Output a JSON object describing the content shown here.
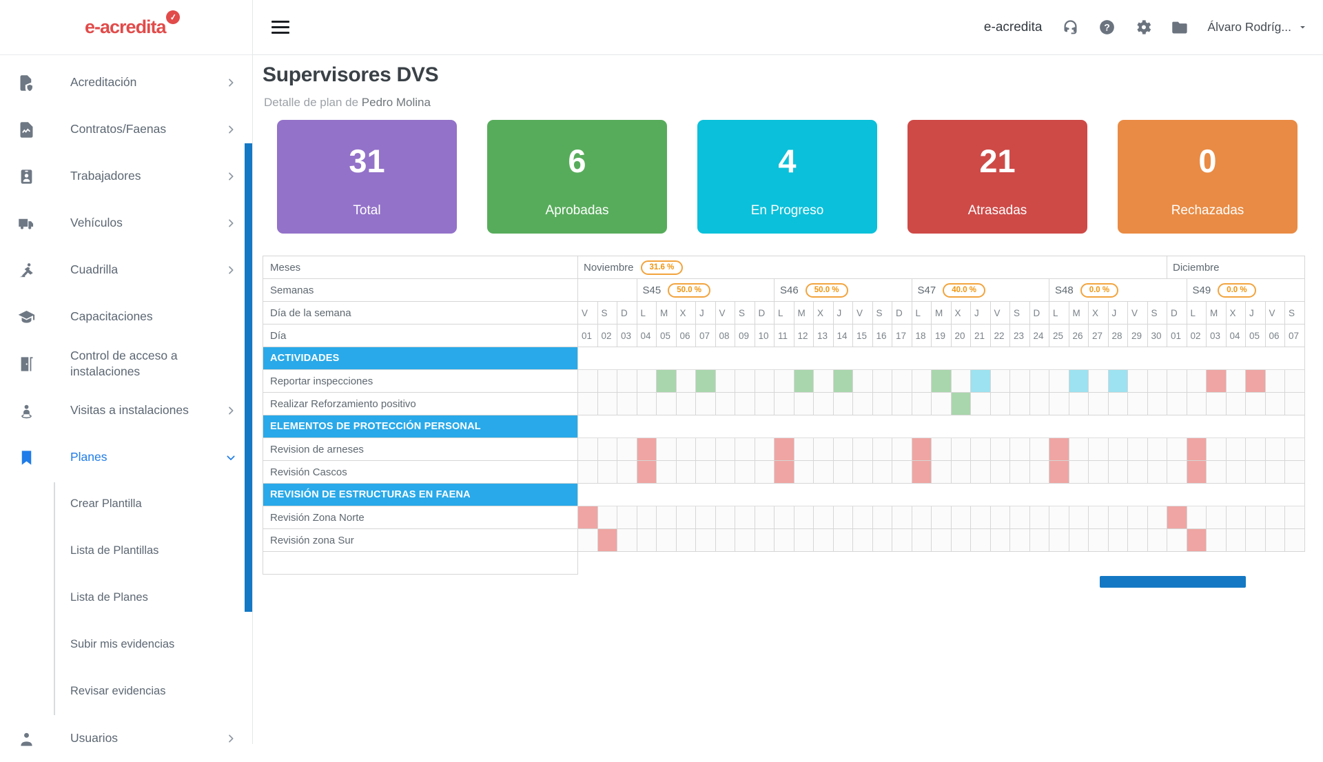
{
  "page": {
    "title": "Supervisores DVS",
    "subtitle_prefix": "Detalle de plan de ",
    "subtitle_name": "Pedro Molina"
  },
  "logo": {
    "text": "e-acredita",
    "badge": "✓",
    "color": "#E14B4A"
  },
  "topbar": {
    "brand": "e-acredita",
    "icons": [
      "headset",
      "help",
      "settings",
      "folder"
    ],
    "user_name": "Álvaro Rodríg...",
    "user_caret": "caret-down"
  },
  "sidebar": {
    "items": [
      {
        "id": "acreditacion",
        "label": "Acreditación",
        "icon": "file-shield",
        "chevron": "right"
      },
      {
        "id": "contratos-faenas",
        "label": "Contratos/Faenas",
        "icon": "file-contract",
        "chevron": "right"
      },
      {
        "id": "trabajadores",
        "label": "Trabajadores",
        "icon": "id-badge",
        "chevron": "right"
      },
      {
        "id": "vehiculos",
        "label": "Vehículos",
        "icon": "truck",
        "chevron": "right"
      },
      {
        "id": "cuadrilla",
        "label": "Cuadrilla",
        "icon": "worker",
        "chevron": "right"
      },
      {
        "id": "capacitaciones",
        "label": "Capacitaciones",
        "icon": "graduation-cap",
        "chevron": ""
      },
      {
        "id": "control-de-acceso",
        "label": "Control de acceso a instalaciones",
        "icon": "door",
        "chevron": ""
      },
      {
        "id": "visitas",
        "label": "Visitas a instalaciones",
        "icon": "person-pin",
        "chevron": "right"
      },
      {
        "id": "planes",
        "label": "Planes",
        "icon": "bookmark",
        "chevron": "down",
        "active": true
      },
      {
        "id": "crear-plantilla",
        "label": "Crear Plantilla",
        "sub": true
      },
      {
        "id": "lista-de-plantillas",
        "label": "Lista de Plantillas",
        "sub": true
      },
      {
        "id": "lista-de-planes",
        "label": "Lista de Planes",
        "sub": true
      },
      {
        "id": "subir-mis-evidencias",
        "label": "Subir mis evidencias",
        "sub": true
      },
      {
        "id": "revisar-evidencias",
        "label": "Revisar evidencias",
        "sub": true
      },
      {
        "id": "usuarios",
        "label": "Usuarios",
        "icon": "person",
        "chevron": "right"
      }
    ]
  },
  "cards": [
    {
      "id": "total",
      "value": "31",
      "label": "Total",
      "color": "#9372C9"
    },
    {
      "id": "aprobadas",
      "value": "6",
      "label": "Aprobadas",
      "color": "#57AC5B"
    },
    {
      "id": "en-progreso",
      "value": "4",
      "label": "En Progreso",
      "color": "#0BC0DA"
    },
    {
      "id": "atrasadas",
      "value": "21",
      "label": "Atrasadas",
      "color": "#CE4A47"
    },
    {
      "id": "rechazadas",
      "value": "0",
      "label": "Rechazadas",
      "color": "#E98B44"
    }
  ],
  "gantt": {
    "row_headers": [
      "Meses",
      "Semanas",
      "Día de la semana",
      "Día"
    ],
    "months": [
      {
        "name": "Noviembre",
        "badge": "31.6 %",
        "span": 30
      },
      {
        "name": "Diciembre",
        "badge": "",
        "span": 7
      }
    ],
    "weeks": [
      {
        "name": "",
        "badge": "",
        "span": 3
      },
      {
        "name": "S45",
        "badge": "50.0 %",
        "span": 7
      },
      {
        "name": "S46",
        "badge": "50.0 %",
        "span": 7
      },
      {
        "name": "S47",
        "badge": "40.0 %",
        "span": 7
      },
      {
        "name": "S48",
        "badge": "0.0 %",
        "span": 7
      },
      {
        "name": "S49",
        "badge": "0.0 %",
        "span": 6
      }
    ],
    "dows": [
      "V",
      "S",
      "D",
      "L",
      "M",
      "X",
      "J",
      "V",
      "S",
      "D",
      "L",
      "M",
      "X",
      "J",
      "V",
      "S",
      "D",
      "L",
      "M",
      "X",
      "J",
      "V",
      "S",
      "D",
      "L",
      "M",
      "X",
      "J",
      "V",
      "S",
      "D",
      "L",
      "M",
      "X",
      "J",
      "V",
      "S"
    ],
    "days": [
      "01",
      "02",
      "03",
      "04",
      "05",
      "06",
      "07",
      "08",
      "09",
      "10",
      "11",
      "12",
      "13",
      "14",
      "15",
      "16",
      "17",
      "18",
      "19",
      "20",
      "21",
      "22",
      "23",
      "24",
      "25",
      "26",
      "27",
      "28",
      "29",
      "30",
      "01",
      "02",
      "03",
      "04",
      "05",
      "06",
      "07"
    ],
    "rows": [
      {
        "type": "section",
        "label": "ACTIVIDADES"
      },
      {
        "type": "task",
        "label": "Reportar inspecciones",
        "green": [
          5,
          7,
          12,
          14,
          19
        ],
        "cyan": [
          21,
          26,
          28
        ],
        "red": [
          33,
          35
        ]
      },
      {
        "type": "task",
        "label": "Realizar Reforzamiento positivo",
        "green": [
          20
        ],
        "cyan": [],
        "red": []
      },
      {
        "type": "section",
        "label": "ELEMENTOS DE PROTECCIÓN PERSONAL"
      },
      {
        "type": "task",
        "label": "Revision de arneses",
        "green": [],
        "cyan": [],
        "red": [
          4,
          11,
          18,
          25,
          32
        ]
      },
      {
        "type": "task",
        "label": "Revisión Cascos",
        "green": [],
        "cyan": [],
        "red": [
          4,
          11,
          18,
          25,
          32
        ]
      },
      {
        "type": "section",
        "label": "REVISIÓN DE ESTRUCTURAS EN FAENA"
      },
      {
        "type": "task",
        "label": "Revisión Zona Norte",
        "green": [],
        "cyan": [],
        "red": [
          1,
          31
        ]
      },
      {
        "type": "task",
        "label": "Revisión zona Sur",
        "green": [],
        "cyan": [],
        "red": [
          2,
          32
        ]
      },
      {
        "type": "empty",
        "label": ""
      }
    ],
    "colors": {
      "green": "#A9D6AC",
      "cyan": "#9CE2F0",
      "red": "#EFA5A3",
      "section_bg": "#29A9E9",
      "pill": "#F2A33C"
    }
  }
}
